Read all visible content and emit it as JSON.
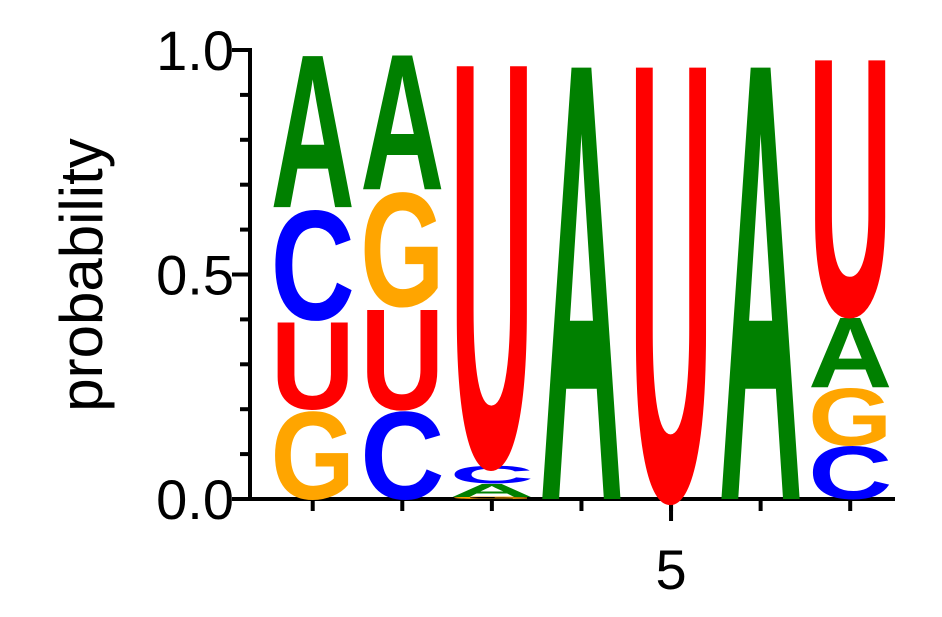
{
  "chart_data": {
    "type": "sequence-logo",
    "y_label": "probability",
    "x": [
      1,
      2,
      3,
      4,
      5,
      6,
      7
    ],
    "series": [
      {
        "name": "A",
        "color": "#008000",
        "values": [
          0.35,
          0.31,
          0.03,
          1.0,
          0,
          1.0,
          0.16
        ]
      },
      {
        "name": "C",
        "color": "#0000ff",
        "values": [
          0.25,
          0.2,
          0.04,
          0,
          0,
          0,
          0.12
        ]
      },
      {
        "name": "G",
        "color": "#ffa500",
        "values": [
          0.2,
          0.26,
          0.005,
          0,
          0,
          0,
          0.13
        ]
      },
      {
        "name": "U",
        "color": "#ff0000",
        "values": [
          0.2,
          0.23,
          0.925,
          0,
          1.0,
          0,
          0.59
        ]
      }
    ],
    "xlim": [
      0.3,
      7.5
    ],
    "xticks": [
      5
    ],
    "ylim": [
      0,
      1
    ],
    "yticks": [
      {
        "value": 0,
        "label": "0.0"
      },
      {
        "value": 0.5,
        "label": "0.5"
      },
      {
        "value": 1,
        "label": "1.0"
      }
    ],
    "yminorticks": [
      0.1,
      0.2,
      0.3,
      0.4,
      0.6,
      0.7,
      0.8,
      0.9
    ]
  }
}
